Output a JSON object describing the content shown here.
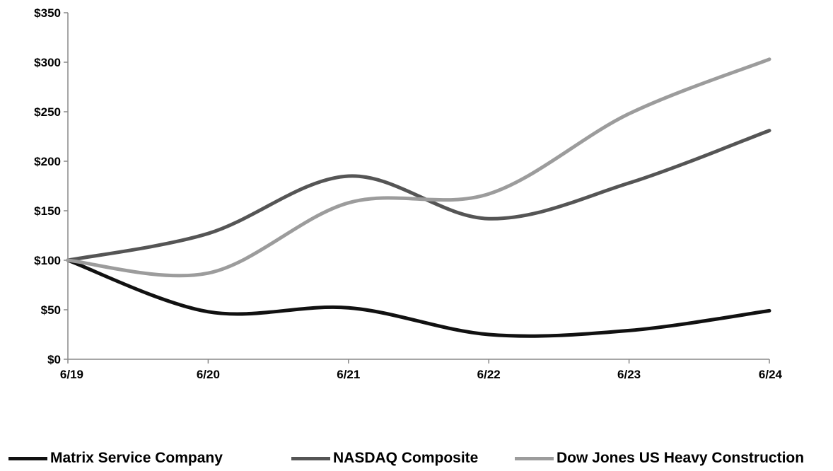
{
  "chart_data": {
    "type": "line",
    "categories": [
      "6/19",
      "6/20",
      "6/21",
      "6/22",
      "6/23",
      "6/24"
    ],
    "y_tick_labels": [
      "$0",
      "$50",
      "$100",
      "$150",
      "$200",
      "$250",
      "$300",
      "$350"
    ],
    "y_ticks": [
      0,
      50,
      100,
      150,
      200,
      250,
      300,
      350
    ],
    "ylim": [
      0,
      350
    ],
    "grid": false,
    "legend_position": "bottom",
    "series": [
      {
        "name": "Matrix Service Company",
        "color": "#111111",
        "values": [
          100,
          48,
          52,
          25,
          29,
          49
        ]
      },
      {
        "name": "NASDAQ Composite",
        "color": "#555555",
        "values": [
          100,
          127,
          185,
          142,
          178,
          231
        ]
      },
      {
        "name": "Dow Jones US Heavy Construction",
        "color": "#9c9c9c",
        "values": [
          100,
          87,
          158,
          167,
          248,
          303
        ]
      }
    ]
  }
}
